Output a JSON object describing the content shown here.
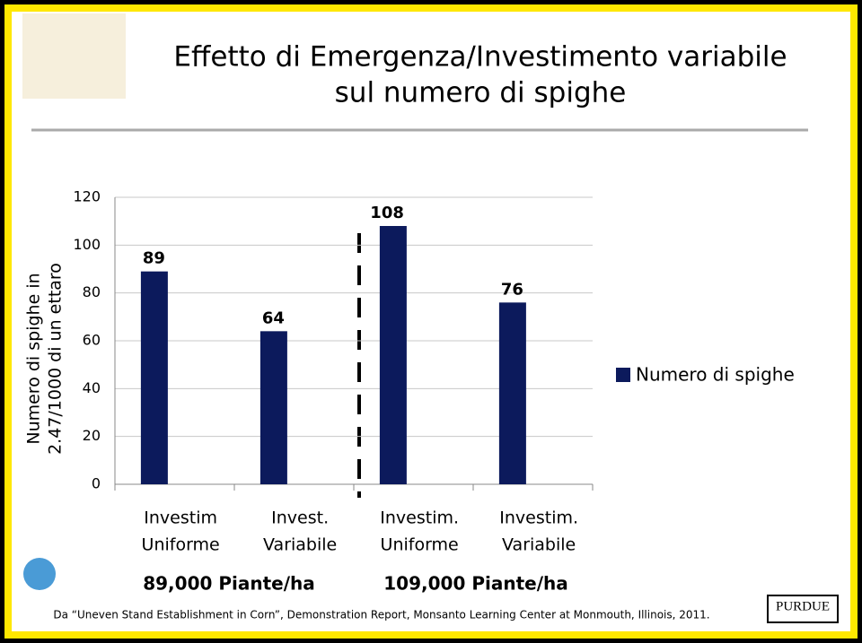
{
  "chart_data": {
    "type": "bar",
    "title": [
      "Effetto di Emergenza/Investimento variabile",
      "sul numero di spighe"
    ],
    "ylabel": [
      "Numero di spighe in",
      "2.47/1000 di un ettaro"
    ],
    "categories": [
      [
        "Investim",
        "Uniforme"
      ],
      [
        "Invest.",
        "Variabile"
      ],
      [
        "Investim.",
        "Uniforme"
      ],
      [
        "Investim.",
        "Variabile"
      ]
    ],
    "series": [
      {
        "name": "Numero di spighe",
        "color": "#0c1a5c",
        "values": [
          89,
          64,
          108,
          76
        ]
      }
    ],
    "group_labels": [
      "89,000 Piante/ha",
      "109,000 Piante/ha"
    ],
    "ylim": [
      0,
      120
    ],
    "yticks": [
      0,
      20,
      40,
      60,
      80,
      100,
      120
    ],
    "grid": true,
    "legend": "right",
    "footnote": "Da “Uneven Stand Establishment in Corn”, Demonstration Report, Monsanto Learning Center at Monmouth, Illinois, 2011."
  },
  "logos": [
    "PURDUE"
  ]
}
